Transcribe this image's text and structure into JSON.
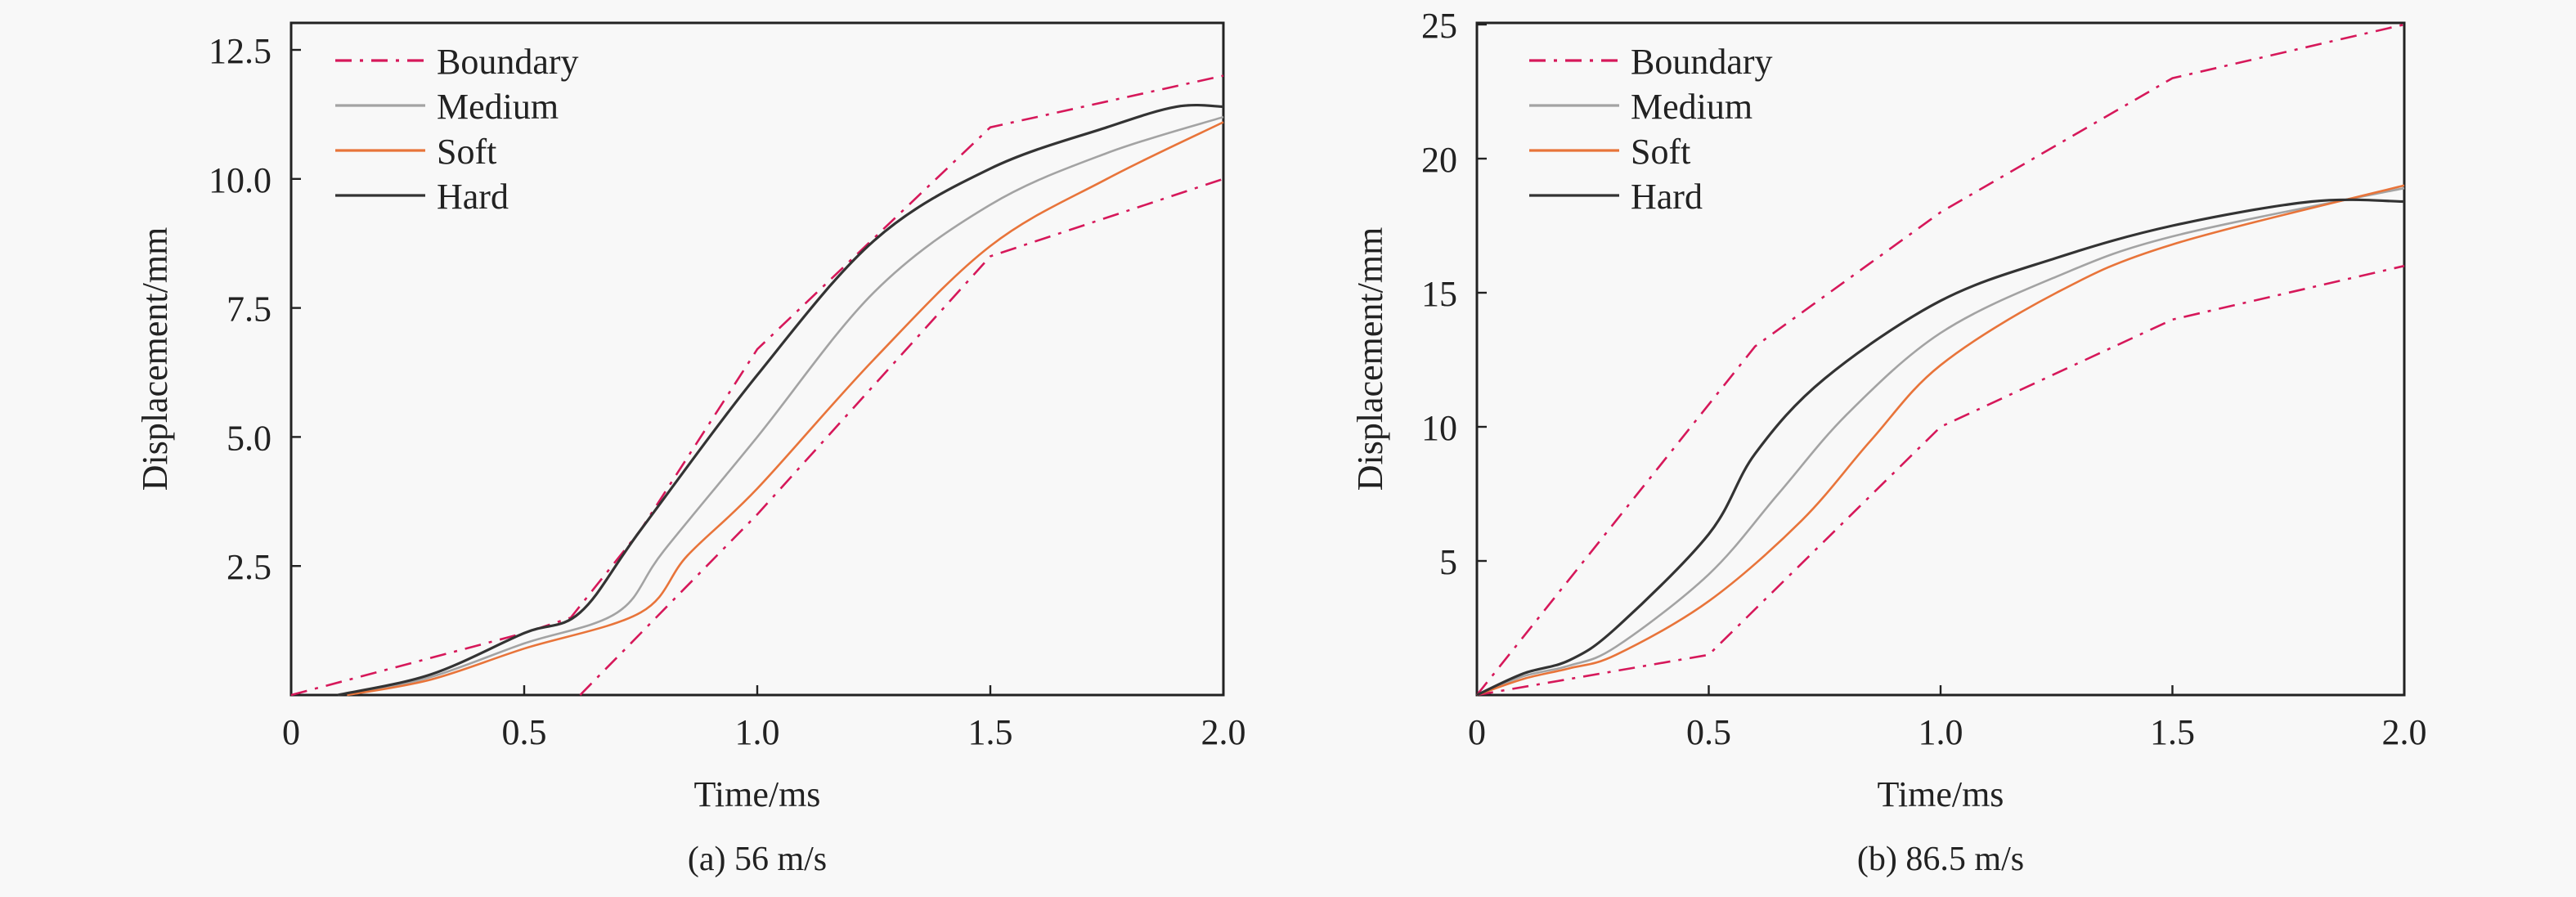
{
  "chart_data": [
    {
      "type": "line",
      "caption": "(a) 56 m/s",
      "xlabel": "Time/ms",
      "ylabel": "Displacement/mm",
      "xlim": [
        0,
        2.0
      ],
      "ylim": [
        0,
        13.0
      ],
      "xticks": [
        "0",
        "0.5",
        "1.0",
        "1.5",
        "2.0"
      ],
      "xtick_values": [
        0,
        0.5,
        1.0,
        1.5,
        2.0
      ],
      "yticks": [
        "2.5",
        "5.0",
        "7.5",
        "10.0",
        "12.5"
      ],
      "ytick_values": [
        2.5,
        5.0,
        7.5,
        10.0,
        12.5
      ],
      "grid": false,
      "legend_position": "top-left",
      "legend": [
        "Boundary",
        "Medium",
        "Soft",
        "Hard"
      ],
      "series": [
        {
          "name": "Boundary",
          "style": "dash-dot",
          "color": "#d6185a",
          "part": "upper",
          "x": [
            0,
            0.5,
            0.6,
            0.75,
            1.0,
            1.5,
            2.0
          ],
          "y": [
            0,
            1.2,
            1.5,
            3.2,
            6.7,
            11.0,
            12.0
          ]
        },
        {
          "name": "Boundary",
          "style": "dash-dot",
          "color": "#d6185a",
          "part": "lower",
          "x": [
            0.62,
            1.0,
            1.5,
            2.0
          ],
          "y": [
            0,
            3.5,
            8.5,
            10.0
          ]
        },
        {
          "name": "Medium",
          "style": "solid",
          "color": "#a3a3a3",
          "x": [
            0.12,
            0.3,
            0.5,
            0.7,
            0.8,
            1.0,
            1.25,
            1.5,
            1.75,
            2.0
          ],
          "y": [
            0,
            0.35,
            1.0,
            1.6,
            2.8,
            5.0,
            7.8,
            9.5,
            10.5,
            11.2
          ]
        },
        {
          "name": "Soft",
          "style": "solid",
          "color": "#e8743a",
          "x": [
            0.12,
            0.3,
            0.5,
            0.75,
            0.85,
            1.0,
            1.25,
            1.5,
            1.75,
            2.0
          ],
          "y": [
            0,
            0.3,
            0.9,
            1.6,
            2.7,
            4.0,
            6.5,
            8.7,
            10.0,
            11.1
          ]
        },
        {
          "name": "Hard",
          "style": "solid",
          "color": "#333333",
          "x": [
            0.1,
            0.3,
            0.5,
            0.62,
            0.75,
            1.0,
            1.25,
            1.5,
            1.75,
            1.9,
            2.0
          ],
          "y": [
            0,
            0.4,
            1.2,
            1.6,
            3.2,
            6.2,
            8.8,
            10.2,
            11.0,
            11.4,
            11.4
          ]
        }
      ]
    },
    {
      "type": "line",
      "caption": "(b) 86.5 m/s",
      "xlabel": "Time/ms",
      "ylabel": "Displacement/mm",
      "xlim": [
        0,
        2.0
      ],
      "ylim": [
        0,
        25.0
      ],
      "xticks": [
        "0",
        "0.5",
        "1.0",
        "1.5",
        "2.0"
      ],
      "xtick_values": [
        0,
        0.5,
        1.0,
        1.5,
        2.0
      ],
      "yticks": [
        "5",
        "10",
        "15",
        "20",
        "25"
      ],
      "ytick_values": [
        5,
        10,
        15,
        20,
        25
      ],
      "grid": false,
      "legend_position": "top-left",
      "legend": [
        "Boundary",
        "Medium",
        "Soft",
        "Hard"
      ],
      "series": [
        {
          "name": "Boundary",
          "style": "dash-dot",
          "color": "#d6185a",
          "part": "upper",
          "x": [
            0,
            0.6,
            1.0,
            1.5,
            2.0
          ],
          "y": [
            0,
            13,
            18,
            23,
            25
          ]
        },
        {
          "name": "Boundary",
          "style": "dash-dot",
          "color": "#d6185a",
          "part": "lower",
          "x": [
            0,
            0.5,
            1.0,
            1.5,
            2.0
          ],
          "y": [
            0,
            1.5,
            10,
            14,
            16
          ]
        },
        {
          "name": "Medium",
          "style": "solid",
          "color": "#a3a3a3",
          "x": [
            0,
            0.1,
            0.2,
            0.3,
            0.5,
            0.65,
            0.8,
            1.0,
            1.25,
            1.5,
            2.0
          ],
          "y": [
            0,
            0.7,
            1.1,
            1.8,
            4.5,
            7.5,
            10.5,
            13.5,
            15.6,
            17.1,
            18.9
          ]
        },
        {
          "name": "Soft",
          "style": "solid",
          "color": "#e8743a",
          "x": [
            0,
            0.1,
            0.2,
            0.3,
            0.5,
            0.7,
            0.85,
            1.0,
            1.25,
            1.5,
            2.0
          ],
          "y": [
            0,
            0.6,
            1.0,
            1.5,
            3.5,
            6.5,
            9.5,
            12.3,
            15.0,
            16.8,
            19.0
          ]
        },
        {
          "name": "Hard",
          "style": "solid",
          "color": "#333333",
          "x": [
            0,
            0.1,
            0.2,
            0.3,
            0.5,
            0.6,
            0.75,
            1.0,
            1.25,
            1.5,
            1.8,
            2.0
          ],
          "y": [
            0,
            0.8,
            1.3,
            2.5,
            6.0,
            9.0,
            11.8,
            14.7,
            16.3,
            17.5,
            18.4,
            18.4
          ]
        }
      ]
    }
  ]
}
